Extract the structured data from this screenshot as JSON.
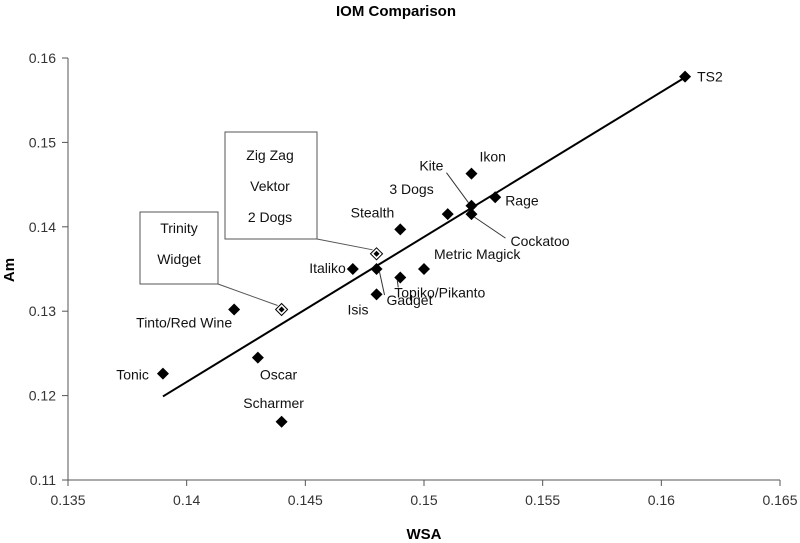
{
  "chart_data": {
    "type": "scatter",
    "title": "IOM Comparison",
    "xlabel": "WSA",
    "ylabel": "Am",
    "xlim": [
      0.135,
      0.165
    ],
    "ylim": [
      0.11,
      0.16
    ],
    "x_ticks": [
      "0.135",
      "0.14",
      "0.145",
      "0.15",
      "0.155",
      "0.16",
      "0.165"
    ],
    "y_ticks": [
      "0.11",
      "0.12",
      "0.13",
      "0.14",
      "0.15",
      "0.16"
    ],
    "x_tick_values": [
      0.135,
      0.14,
      0.145,
      0.15,
      0.155,
      0.16,
      0.165
    ],
    "y_tick_values": [
      0.11,
      0.12,
      0.13,
      0.14,
      0.15,
      0.16
    ],
    "grid": false,
    "points": [
      {
        "label": "TS2",
        "x": 0.161,
        "y": 0.1578
      },
      {
        "label": "Ikon",
        "x": 0.152,
        "y": 0.1463
      },
      {
        "label": "Kite",
        "x": 0.152,
        "y": 0.1425
      },
      {
        "label": "3 Dogs",
        "x": 0.151,
        "y": 0.1415
      },
      {
        "label": "Rage",
        "x": 0.153,
        "y": 0.1435
      },
      {
        "label": "Cockatoo",
        "x": 0.152,
        "y": 0.1415
      },
      {
        "label": "Stealth",
        "x": 0.149,
        "y": 0.1397
      },
      {
        "label": "Italiko",
        "x": 0.147,
        "y": 0.135
      },
      {
        "label": "Metric Magick",
        "x": 0.15,
        "y": 0.135
      },
      {
        "label": "Topiko/Pikanto",
        "x": 0.149,
        "y": 0.134
      },
      {
        "label": "Isis",
        "x": 0.148,
        "y": 0.132
      },
      {
        "label": "Gadget",
        "x": 0.148,
        "y": 0.135
      },
      {
        "label": "Tinto/Red Wine",
        "x": 0.142,
        "y": 0.1302
      },
      {
        "label": "Oscar",
        "x": 0.143,
        "y": 0.1245
      },
      {
        "label": "Tonic",
        "x": 0.139,
        "y": 0.1226
      },
      {
        "label": "Scharmer",
        "x": 0.144,
        "y": 0.1169
      }
    ],
    "group_points": [
      {
        "labels": [
          "Zig Zag",
          "Vektor",
          "2 Dogs"
        ],
        "x": 0.148,
        "y": 0.1368
      },
      {
        "labels": [
          "Trinity",
          "Widget"
        ],
        "x": 0.144,
        "y": 0.1302
      }
    ],
    "trendline": {
      "x": [
        0.139,
        0.161
      ],
      "y": [
        0.1199,
        0.1577
      ]
    }
  }
}
